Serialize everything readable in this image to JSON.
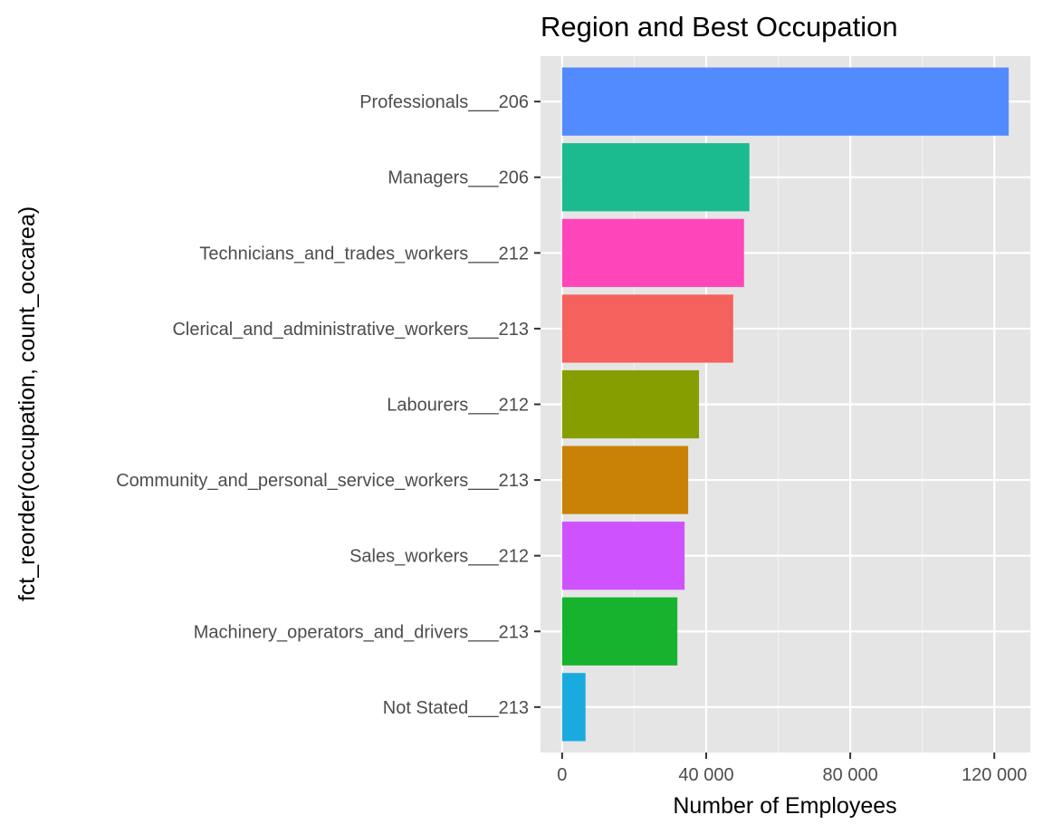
{
  "chart_data": {
    "type": "bar",
    "orientation": "horizontal",
    "title": "Region and Best Occupation",
    "xlabel": "Number of Employees",
    "ylabel": "fct_reorder(occupation, count_occarea)",
    "xlim": [
      -6000,
      130000
    ],
    "x_ticks": [
      0,
      40000,
      80000,
      120000
    ],
    "x_tick_labels": [
      "0",
      "40 000",
      "80 000",
      "120 000"
    ],
    "grid": true,
    "legend": "none",
    "categories": [
      "Professionals___206",
      "Managers___206",
      "Technicians_and_trades_workers___212",
      "Clerical_and_administrative_workers___213",
      "Labourers___212",
      "Community_and_personal_service_workers___213",
      "Sales_workers___212",
      "Machinery_operators_and_drivers___213",
      "Not Stated___213"
    ],
    "values": [
      124000,
      52000,
      50500,
      47500,
      38000,
      35000,
      34000,
      32000,
      6500
    ],
    "colors": [
      "#528bff",
      "#1abb8f",
      "#ff45ba",
      "#f5615d",
      "#869e00",
      "#c98205",
      "#cf52ff",
      "#17b32f",
      "#19abe0"
    ]
  }
}
